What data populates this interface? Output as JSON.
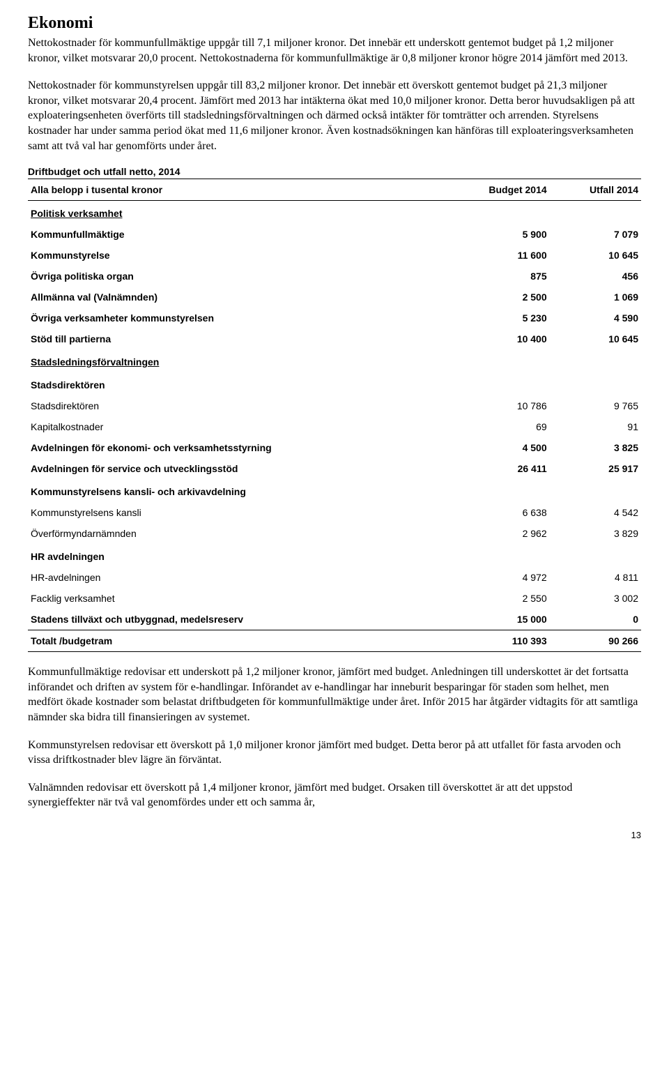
{
  "heading": "Ekonomi",
  "para1": "Nettokostnader för kommunfullmäktige uppgår till 7,1 miljoner kronor. Det innebär ett underskott gentemot budget på 1,2 miljoner kronor, vilket motsvarar 20,0 procent. Nettokostnaderna för kommunfullmäktige är 0,8 miljoner kronor högre 2014 jämfört med 2013.",
  "para2": "Nettokostnader för kommunstyrelsen uppgår till 83,2 miljoner kronor. Det innebär ett överskott gentemot budget på 21,3 miljoner kronor, vilket motsvarar 20,4 procent. Jämfört med 2013 har intäkterna ökat med 10,0 miljoner kronor. Detta beror huvudsakligen på att exploateringsenheten överförts till stadsledningsförvaltningen och därmed också intäkter för tomträtter och arrenden. Styrelsens kostnader har under samma period ökat med 11,6 miljoner kronor. Även kostnadsökningen kan hänföras till exploateringsverksamheten samt att två val har genomförts under året.",
  "table": {
    "title": "Driftbudget och utfall netto, 2014",
    "columns": [
      "Alla belopp i tusental kronor",
      "Budget 2014",
      "Utfall 2014"
    ],
    "rows": [
      {
        "type": "section",
        "label": "Politisk verksamhet"
      },
      {
        "type": "bold",
        "label": "Kommunfullmäktige",
        "budget": "5 900",
        "utfall": "7 079"
      },
      {
        "type": "bold",
        "label": "Kommunstyrelse",
        "budget": "11 600",
        "utfall": "10 645"
      },
      {
        "type": "bold",
        "label": "Övriga politiska organ",
        "budget": "875",
        "utfall": "456"
      },
      {
        "type": "bold",
        "label": "Allmänna val (Valnämnden)",
        "budget": "2 500",
        "utfall": "1 069"
      },
      {
        "type": "bold",
        "label": "Övriga verksamheter kommunstyrelsen",
        "budget": "5 230",
        "utfall": "4 590"
      },
      {
        "type": "bold",
        "label": "Stöd till partierna",
        "budget": "10 400",
        "utfall": "10 645"
      },
      {
        "type": "section",
        "label": "Stadsledningsförvaltningen"
      },
      {
        "type": "subheader",
        "label": "Stadsdirektören"
      },
      {
        "type": "normal",
        "label": "Stadsdirektören",
        "budget": "10 786",
        "utfall": "9 765"
      },
      {
        "type": "normal",
        "label": "Kapitalkostnader",
        "budget": "69",
        "utfall": "91"
      },
      {
        "type": "bold",
        "label": "Avdelningen för ekonomi- och verksamhetsstyrning",
        "budget": "4 500",
        "utfall": "3 825"
      },
      {
        "type": "bold",
        "label": "Avdelningen för service och utvecklingsstöd",
        "budget": "26 411",
        "utfall": "25 917"
      },
      {
        "type": "subheader",
        "label": "Kommunstyrelsens kansli- och arkivavdelning"
      },
      {
        "type": "normal",
        "label": "Kommunstyrelsens kansli",
        "budget": "6 638",
        "utfall": "4 542"
      },
      {
        "type": "normal",
        "label": "Överförmyndarnämnden",
        "budget": "2 962",
        "utfall": "3 829"
      },
      {
        "type": "subheader",
        "label": "HR avdelningen"
      },
      {
        "type": "normal",
        "label": "HR-avdelningen",
        "budget": "4 972",
        "utfall": "4 811"
      },
      {
        "type": "normal",
        "label": "Facklig verksamhet",
        "budget": "2 550",
        "utfall": "3 002"
      },
      {
        "type": "bold",
        "label": "Stadens tillväxt och utbyggnad, medelsreserv",
        "budget": "15 000",
        "utfall": "0"
      },
      {
        "type": "total",
        "label": "Totalt /budgetram",
        "budget": "110 393",
        "utfall": "90 266"
      }
    ]
  },
  "para3": "Kommunfullmäktige redovisar ett underskott på 1,2 miljoner kronor, jämfört med budget. Anledningen till underskottet är det fortsatta införandet och driften av system för e-handlingar. Införandet av e-handlingar har inneburit besparingar för staden som helhet, men medfört ökade kostnader som belastat driftbudgeten för kommunfullmäktige under året. Inför 2015 har åtgärder vidtagits för att samtliga nämnder ska bidra till finansieringen av systemet.",
  "para4": "Kommunstyrelsen redovisar ett överskott på 1,0 miljoner kronor jämfört med budget. Detta beror på att utfallet för fasta arvoden och vissa driftkostnader blev lägre än förväntat.",
  "para5": "Valnämnden redovisar ett överskott på 1,4 miljoner kronor, jämfört med budget. Orsaken till överskottet är att det uppstod synergieffekter när två val genomfördes under ett och samma år,",
  "pageNumber": "13"
}
